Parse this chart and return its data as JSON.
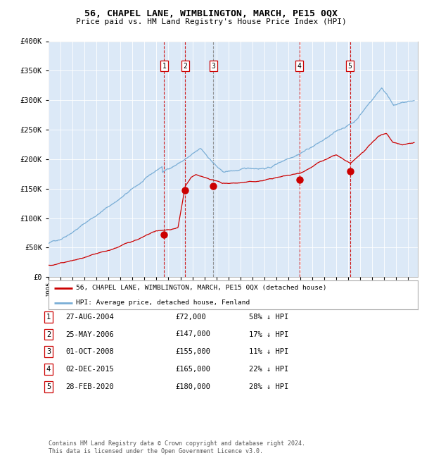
{
  "title": "56, CHAPEL LANE, WIMBLINGTON, MARCH, PE15 0QX",
  "subtitle": "Price paid vs. HM Land Registry's House Price Index (HPI)",
  "background_color": "#dce9f7",
  "ylim": [
    0,
    400000
  ],
  "yticks": [
    0,
    50000,
    100000,
    150000,
    200000,
    250000,
    300000,
    350000,
    400000
  ],
  "xlim_start": 1995.0,
  "xlim_end": 2025.8,
  "legend_house": "56, CHAPEL LANE, WIMBLINGTON, MARCH, PE15 0QX (detached house)",
  "legend_hpi": "HPI: Average price, detached house, Fenland",
  "house_color": "#cc0000",
  "hpi_color": "#7aaed6",
  "table_entries": [
    {
      "num": 1,
      "date": "27-AUG-2004",
      "price": "£72,000",
      "pct": "58% ↓ HPI",
      "year": 2004.65,
      "price_val": 72000,
      "vline_color": "#cc0000"
    },
    {
      "num": 2,
      "date": "25-MAY-2006",
      "price": "£147,000",
      "pct": "17% ↓ HPI",
      "year": 2006.4,
      "price_val": 147000,
      "vline_color": "#cc0000"
    },
    {
      "num": 3,
      "date": "01-OCT-2008",
      "price": "£155,000",
      "pct": "11% ↓ HPI",
      "year": 2008.75,
      "price_val": 155000,
      "vline_color": "#888888"
    },
    {
      "num": 4,
      "date": "02-DEC-2015",
      "price": "£165,000",
      "pct": "22% ↓ HPI",
      "year": 2015.92,
      "price_val": 165000,
      "vline_color": "#cc0000"
    },
    {
      "num": 5,
      "date": "28-FEB-2020",
      "price": "£180,000",
      "pct": "28% ↓ HPI",
      "year": 2020.15,
      "price_val": 180000,
      "vline_color": "#cc0000"
    }
  ],
  "footer": "Contains HM Land Registry data © Crown copyright and database right 2024.\nThis data is licensed under the Open Government Licence v3.0."
}
